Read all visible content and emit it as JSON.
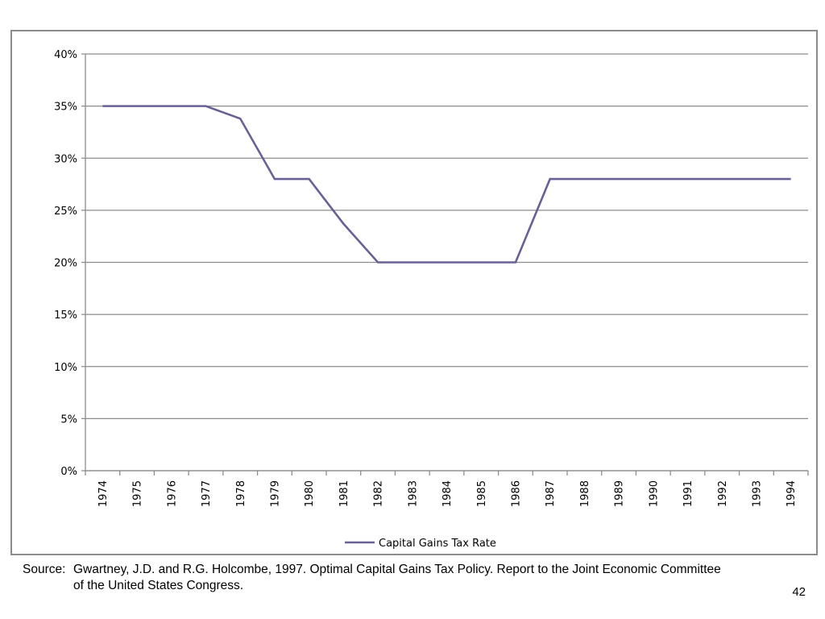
{
  "chart_data": {
    "type": "line",
    "categories": [
      "1974",
      "1975",
      "1976",
      "1977",
      "1978",
      "1979",
      "1980",
      "1981",
      "1982",
      "1983",
      "1984",
      "1985",
      "1986",
      "1987",
      "1988",
      "1989",
      "1990",
      "1991",
      "1992",
      "1993",
      "1994"
    ],
    "series": [
      {
        "name": "Capital Gains Tax Rate",
        "values": [
          35,
          35,
          35,
          35,
          33.8,
          28,
          28,
          23.7,
          20,
          20,
          20,
          20,
          20,
          28,
          28,
          28,
          28,
          28,
          28,
          28,
          28
        ],
        "color": "#676196"
      }
    ],
    "y_ticks": [
      "0%",
      "5%",
      "10%",
      "15%",
      "20%",
      "25%",
      "30%",
      "35%",
      "40%"
    ],
    "ylim": [
      0,
      40
    ],
    "grid": true,
    "legend_position": "bottom"
  },
  "source": {
    "label": "Source:",
    "text_line1": "Gwartney, J.D. and R.G. Holcombe, 1997. Optimal Capital Gains Tax Policy. Report to the Joint Economic Committee",
    "text_line2": "of the United States Congress."
  },
  "page_number": "42"
}
